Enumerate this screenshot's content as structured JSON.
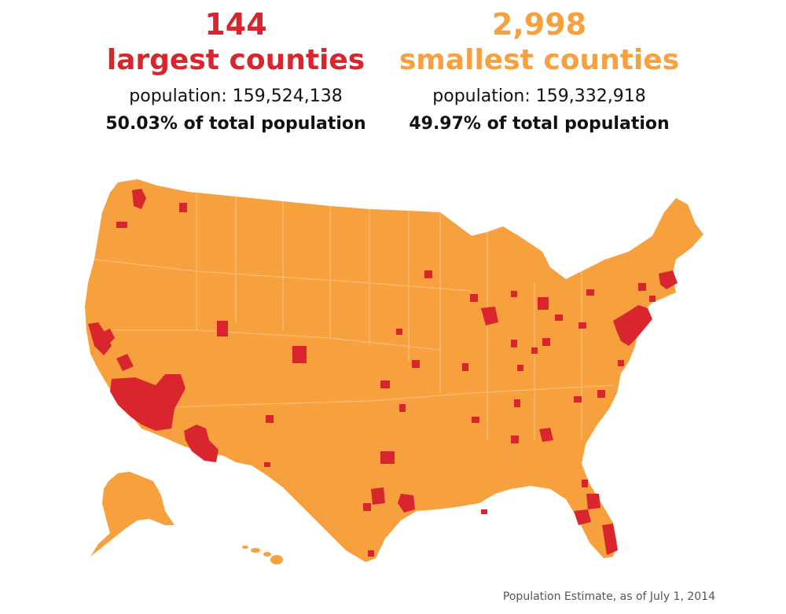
{
  "colors": {
    "largest": "#d9262e",
    "smallest": "#f7a03e",
    "border": "#fbc385"
  },
  "largest": {
    "count": "144",
    "label": "largest counties",
    "population": "population: 159,524,138",
    "share": "50.03% of total population"
  },
  "smallest": {
    "count": "2,998",
    "label": "smallest counties",
    "population": "population: 159,332,918",
    "share": "49.97% of total population"
  },
  "footnote": "Population Estimate, as of July 1, 2014"
}
